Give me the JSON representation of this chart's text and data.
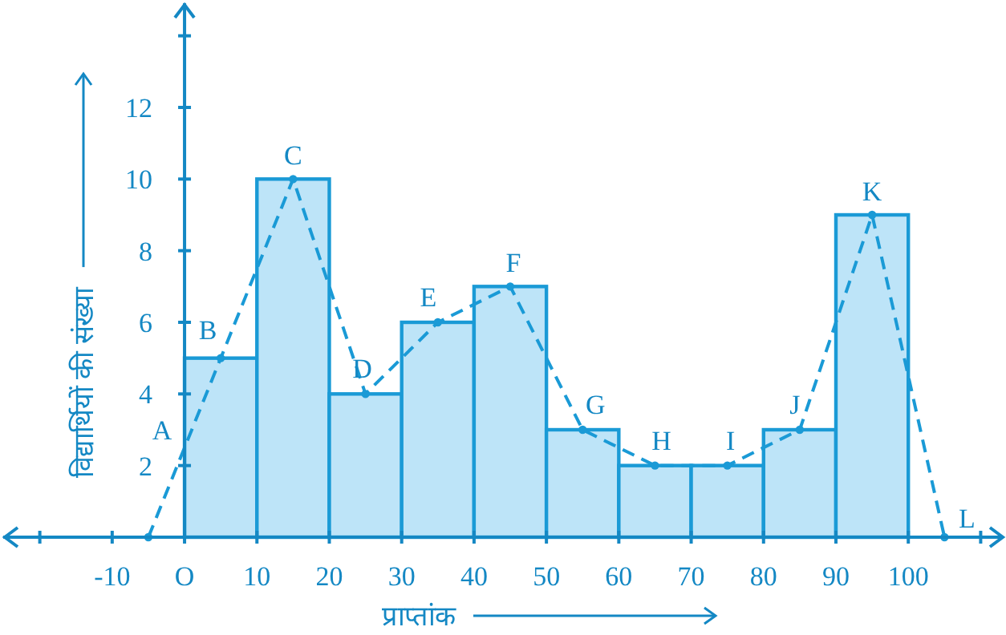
{
  "chart_data": {
    "type": "histogram",
    "xlabel": "प्राप्तांक",
    "ylabel": "विद्यार्थियों की संख्या",
    "color": "#1a9ad6",
    "series": [
      {
        "type": "histogram",
        "bins": [
          0,
          10,
          20,
          30,
          40,
          50,
          60,
          70,
          80,
          90,
          100
        ],
        "values": [
          5,
          10,
          4,
          6,
          7,
          3,
          2,
          2,
          3,
          9
        ],
        "color": "#bde4f8"
      },
      {
        "type": "line",
        "x": [
          -5,
          5,
          15,
          25,
          35,
          45,
          55,
          65,
          75,
          85,
          95,
          105
        ],
        "values": [
          0,
          5,
          10,
          4,
          6,
          7,
          3,
          2,
          2,
          3,
          9,
          0
        ],
        "color": "#1a9ad6",
        "line_style": "dashed",
        "marker": "circle"
      }
    ],
    "annotations": [
      {
        "text": "A",
        "x": 0,
        "y": 2.5
      },
      {
        "text": "B",
        "x": 5,
        "y": 5
      },
      {
        "text": "C",
        "x": 15,
        "y": 10
      },
      {
        "text": "D",
        "x": 25,
        "y": 4
      },
      {
        "text": "E",
        "x": 35,
        "y": 6
      },
      {
        "text": "F",
        "x": 45,
        "y": 7
      },
      {
        "text": "G",
        "x": 55,
        "y": 3
      },
      {
        "text": "H",
        "x": 65,
        "y": 2
      },
      {
        "text": "I",
        "x": 75,
        "y": 2
      },
      {
        "text": "J",
        "x": 85,
        "y": 3
      },
      {
        "text": "K",
        "x": 95,
        "y": 9
      },
      {
        "text": "L",
        "x": 105,
        "y": 0
      }
    ],
    "xlim": [
      -25.5,
      113.5
    ],
    "ylim": [
      0,
      15
    ],
    "xticks": [
      {
        "value": -20,
        "label": null
      },
      -10,
      {
        "value": 0,
        "label": "O"
      },
      10,
      20,
      30,
      40,
      50,
      60,
      70,
      80,
      90,
      100,
      {
        "value": 110,
        "label": null
      }
    ],
    "yticks": [
      2,
      4,
      6,
      8,
      10,
      12,
      {
        "value": 14,
        "label": null
      }
    ],
    "grid": false
  }
}
